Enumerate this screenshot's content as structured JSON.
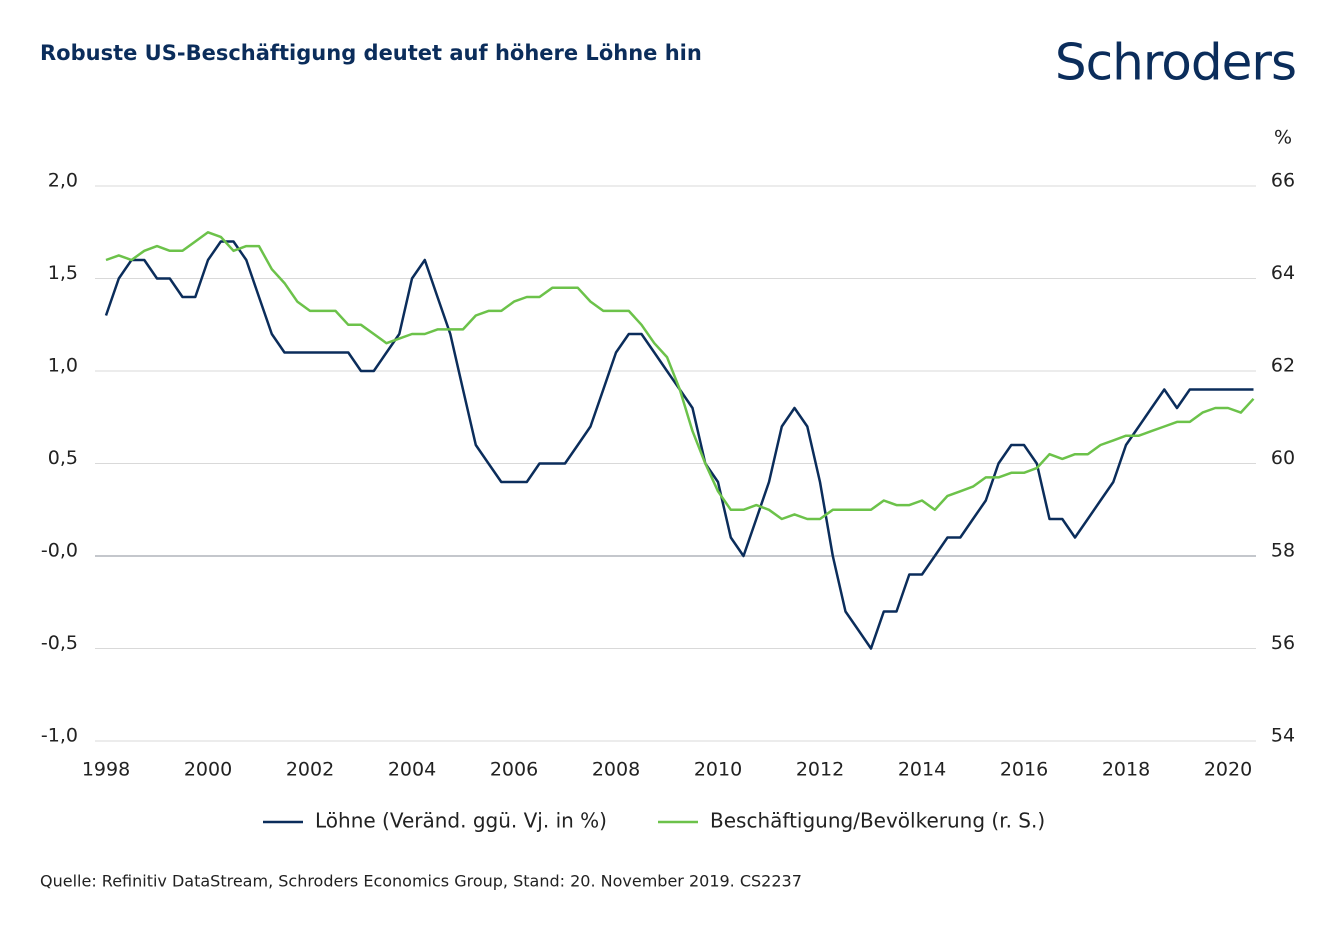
{
  "chart_data": {
    "type": "line",
    "title": "Robuste US-Beschäftigung deutet auf höhere Löhne hin",
    "logo": "Schroders",
    "y2_label": "%",
    "source": "Quelle: Refinitiv DataStream, Schroders Economics Group, Stand: 20. November 2019. CS2237",
    "x": [
      1998,
      1998.25,
      1998.5,
      1998.75,
      1999,
      1999.25,
      1999.5,
      1999.75,
      2000,
      2000.25,
      2000.5,
      2000.75,
      2001,
      2001.25,
      2001.5,
      2001.75,
      2002,
      2002.25,
      2002.5,
      2002.75,
      2003,
      2003.25,
      2003.5,
      2003.75,
      2004,
      2004.25,
      2004.5,
      2004.75,
      2005,
      2005.25,
      2005.5,
      2005.75,
      2006,
      2006.25,
      2006.5,
      2006.75,
      2007,
      2007.25,
      2007.5,
      2007.75,
      2008,
      2008.25,
      2008.5,
      2008.75,
      2009,
      2009.25,
      2009.5,
      2009.75,
      2010,
      2010.25,
      2010.5,
      2010.75,
      2011,
      2011.25,
      2011.5,
      2011.75,
      2012,
      2012.25,
      2012.5,
      2012.75,
      2013,
      2013.25,
      2013.5,
      2013.75,
      2014,
      2014.25,
      2014.5,
      2014.75,
      2015,
      2015.25,
      2015.5,
      2015.75,
      2016,
      2016.25,
      2016.5,
      2016.75,
      2017,
      2017.25,
      2017.5,
      2017.75,
      2018,
      2018.25,
      2018.5,
      2018.75,
      2019,
      2019.25,
      2019.5,
      2019.75,
      2020,
      2020.25,
      2020.5
    ],
    "series": [
      {
        "name": "Löhne (Veränd. ggü. Vj. in %)",
        "color": "#0b2d5b",
        "axis": "y",
        "values": [
          1.3,
          1.5,
          1.6,
          1.6,
          1.5,
          1.5,
          1.4,
          1.4,
          1.6,
          1.7,
          1.7,
          1.6,
          1.4,
          1.2,
          1.1,
          1.1,
          1.1,
          1.1,
          1.1,
          1.1,
          1.0,
          1.0,
          1.1,
          1.2,
          1.5,
          1.6,
          1.4,
          1.2,
          0.9,
          0.6,
          0.5,
          0.4,
          0.4,
          0.4,
          0.5,
          0.5,
          0.5,
          0.6,
          0.7,
          0.9,
          1.1,
          1.2,
          1.2,
          1.1,
          1.0,
          0.9,
          0.8,
          0.5,
          0.4,
          0.1,
          0.0,
          0.2,
          0.4,
          0.7,
          0.8,
          0.7,
          0.4,
          0.0,
          -0.3,
          -0.4,
          -0.5,
          -0.3,
          -0.3,
          -0.1,
          -0.1,
          0.0,
          0.1,
          0.1,
          0.2,
          0.3,
          0.5,
          0.6,
          0.6,
          0.5,
          0.2,
          0.2,
          0.1,
          0.2,
          0.3,
          0.4,
          0.6,
          0.7,
          0.8,
          0.9,
          0.8,
          0.9,
          0.9,
          0.9,
          0.9,
          0.9,
          0.9
        ]
      },
      {
        "name": "Beschäftigung/Bevölkerung (r. S.)",
        "color": "#6cc24a",
        "axis": "y2",
        "values": [
          64.4,
          64.5,
          64.4,
          64.6,
          64.7,
          64.6,
          64.6,
          64.8,
          65.0,
          64.9,
          64.6,
          64.7,
          64.7,
          64.2,
          63.9,
          63.5,
          63.3,
          63.3,
          63.3,
          63.0,
          63.0,
          62.8,
          62.6,
          62.7,
          62.8,
          62.8,
          62.9,
          62.9,
          62.9,
          63.2,
          63.3,
          63.3,
          63.5,
          63.6,
          63.6,
          63.8,
          63.8,
          63.8,
          63.5,
          63.3,
          63.3,
          63.3,
          63.0,
          62.6,
          62.3,
          61.6,
          60.7,
          60.0,
          59.4,
          59.0,
          59.0,
          59.1,
          59.0,
          58.8,
          58.9,
          58.8,
          58.8,
          59.0,
          59.0,
          59.0,
          59.0,
          59.2,
          59.1,
          59.1,
          59.2,
          59.0,
          59.3,
          59.4,
          59.5,
          59.7,
          59.7,
          59.8,
          59.8,
          59.9,
          60.2,
          60.1,
          60.2,
          60.2,
          60.4,
          60.5,
          60.6,
          60.6,
          60.7,
          60.8,
          60.9,
          60.9,
          61.1,
          61.2,
          61.2,
          61.1,
          61.4
        ]
      }
    ],
    "xlim": [
      1998,
      2020.5
    ],
    "xticks": [
      1998,
      2000,
      2002,
      2004,
      2006,
      2008,
      2010,
      2012,
      2014,
      2016,
      2018,
      2020
    ],
    "ylim": [
      -1,
      2
    ],
    "yticks": [
      {
        "value": 2,
        "label": "2,0"
      },
      {
        "value": 1.5,
        "label": "1,5"
      },
      {
        "value": 1,
        "label": "1,0"
      },
      {
        "value": 0.5,
        "label": "0,5"
      },
      {
        "value": 0,
        "label": "-0,0"
      },
      {
        "value": -0.5,
        "label": "-0,5"
      },
      {
        "value": -1,
        "label": "-1,0"
      }
    ],
    "y2lim": [
      54,
      66
    ],
    "y2ticks": [
      66,
      64,
      62,
      60,
      58,
      56,
      54
    ],
    "grid": true
  }
}
